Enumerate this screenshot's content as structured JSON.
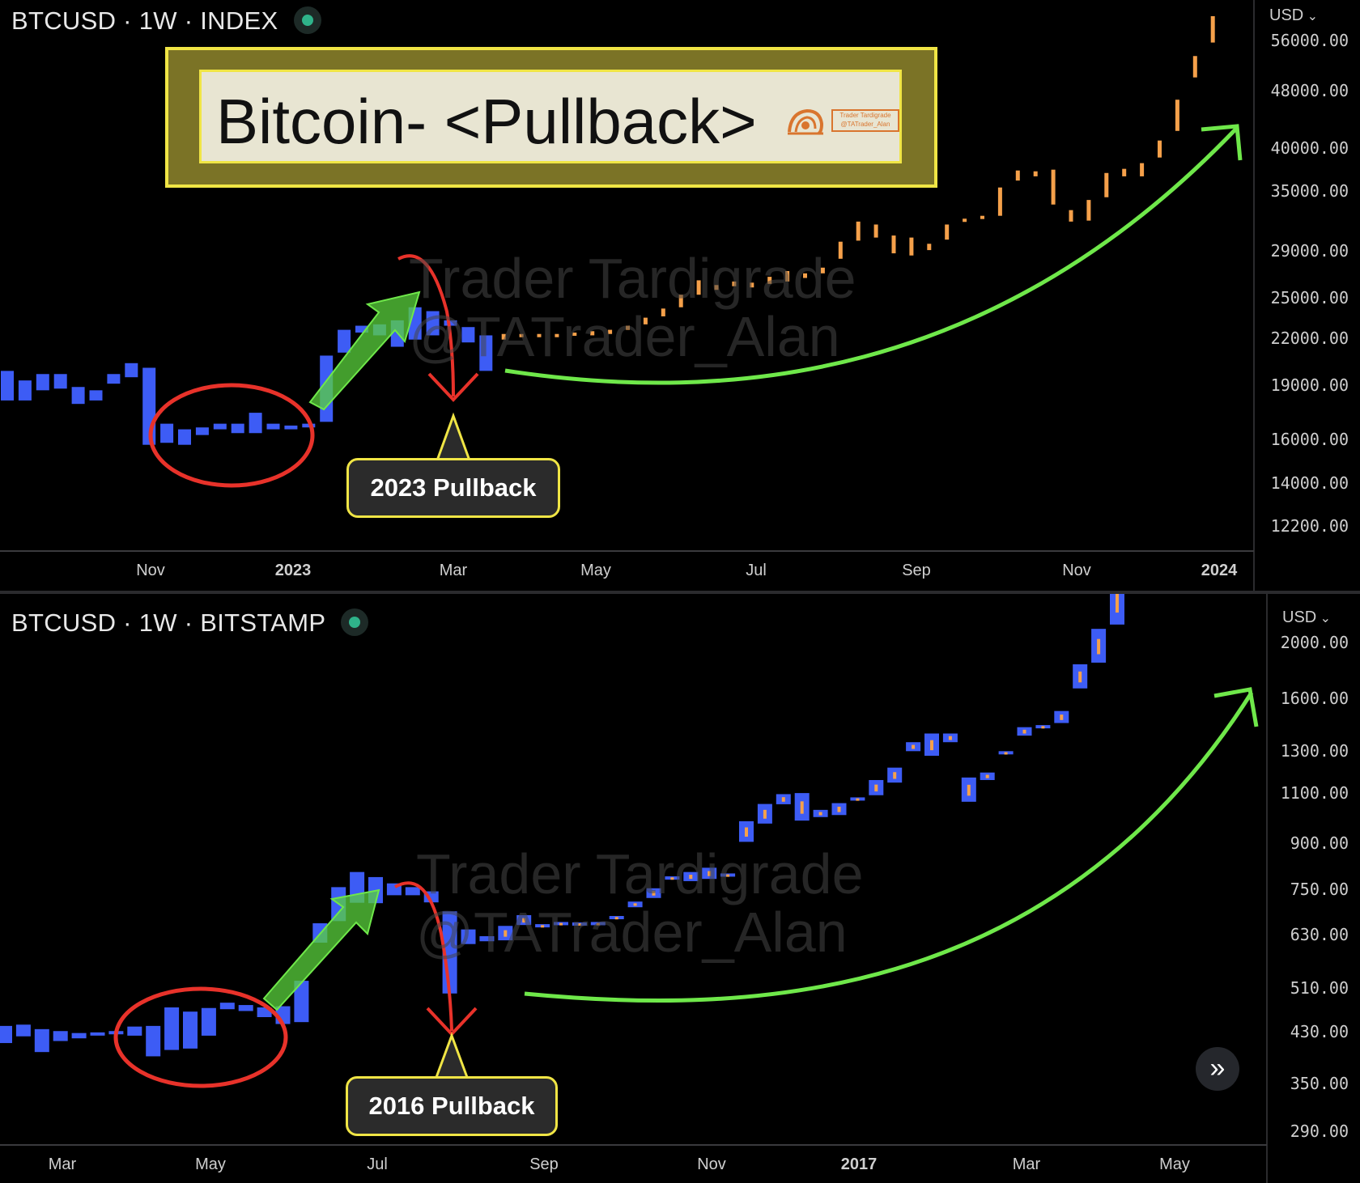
{
  "top_panel": {
    "symbol": "BTCUSD · 1W · INDEX",
    "currency": "USD",
    "price_ticks": [
      "56000.00",
      "48000.00",
      "40000.00",
      "35000.00",
      "29000.00",
      "25000.00",
      "22000.00",
      "19000.00",
      "16000.00",
      "14000.00",
      "12200.00"
    ],
    "time_ticks": [
      "Nov",
      "2023",
      "Mar",
      "May",
      "Jul",
      "Sep",
      "Nov",
      "2024"
    ],
    "banner_title": "Bitcoin- <Pullback>",
    "logo_line1": "Trader Tardigrade",
    "logo_line2": "@TATrader_Alan",
    "callout": "2023 Pullback",
    "watermark_line1": "Trader Tardigrade",
    "watermark_line2": "@TATrader_Alan"
  },
  "bottom_panel": {
    "symbol": "BTCUSD · 1W · BITSTAMP",
    "currency": "USD",
    "price_ticks": [
      "2000.00",
      "1600.00",
      "1300.00",
      "1100.00",
      "900.00",
      "750.00",
      "630.00",
      "510.00",
      "430.00",
      "350.00",
      "290.00"
    ],
    "time_ticks": [
      "Mar",
      "May",
      "Jul",
      "Sep",
      "Nov",
      "2017",
      "Mar",
      "May"
    ],
    "callout": "2016 Pullback",
    "watermark_line1": "Trader Tardigrade",
    "watermark_line2": "@TATrader_Alan"
  },
  "colors": {
    "bull": "#3d5cf5",
    "bear": "#3d5cf5",
    "projection": "#f5a04a",
    "arrow_green": "#6fe84a",
    "arrow_red": "#e8322a",
    "circle_red": "#e8322a",
    "callout_border": "#f0e545"
  },
  "chart_data": [
    {
      "type": "bar",
      "title": "BTCUSD · 1W · INDEX",
      "scale": "log",
      "ylim": [
        11000,
        62000
      ],
      "series": [
        {
          "values": [
            [
              20000,
              18200
            ],
            [
              19400,
              18200
            ],
            [
              18800,
              19800
            ],
            [
              18900,
              19800
            ],
            [
              19000,
              18000
            ],
            [
              18800,
              18200
            ],
            [
              19200,
              19800
            ],
            [
              19600,
              20500
            ],
            [
              20200,
              15800
            ],
            [
              16900,
              15900
            ],
            [
              16600,
              15800
            ],
            [
              16700,
              16300
            ],
            [
              16600,
              16900
            ],
            [
              16400,
              16900
            ],
            [
              17500,
              16400
            ],
            [
              16600,
              16900
            ],
            [
              16600,
              16800
            ],
            [
              16700,
              16900
            ],
            [
              17000,
              21000
            ],
            [
              21200,
              22800
            ],
            [
              22600,
              23100
            ],
            [
              22400,
              23200
            ],
            [
              23500,
              21600
            ],
            [
              24500,
              22100
            ],
            [
              24200,
              22400
            ],
            [
              23100,
              23500
            ],
            [
              21900,
              23000
            ],
            [
              20000,
              22400
            ]
          ]
        },
        {
          "values": [
            [
              22100,
              22500
            ],
            [
              22300,
              22500
            ],
            [
              22400,
              22500
            ],
            [
              22400,
              22500
            ],
            [
              22400,
              22600
            ],
            [
              22400,
              22700
            ],
            [
              22500,
              22800
            ],
            [
              22800,
              23100
            ],
            [
              23200,
              23700
            ],
            [
              23800,
              24400
            ],
            [
              24500,
              25500
            ],
            [
              25500,
              26700
            ],
            [
              25900,
              26300
            ],
            [
              26200,
              26600
            ],
            [
              26100,
              26500
            ],
            [
              26400,
              27000
            ],
            [
              26600,
              27500
            ],
            [
              26900,
              27300
            ],
            [
              27300,
              27800
            ],
            [
              28600,
              30200
            ],
            [
              30300,
              32200
            ],
            [
              30600,
              31900
            ],
            [
              29100,
              30800
            ],
            [
              28900,
              30600
            ],
            [
              29400,
              30000
            ],
            [
              30400,
              31900
            ],
            [
              32500,
              32300
            ],
            [
              32500,
              32800
            ],
            [
              32800,
              35900
            ],
            [
              36700,
              37900
            ],
            [
              37200,
              37800
            ],
            [
              34000,
              38000
            ],
            [
              32200,
              33400
            ],
            [
              32300,
              34500
            ],
            [
              34800,
              37600
            ],
            [
              37200,
              38100
            ],
            [
              37200,
              38800
            ],
            [
              39500,
              41700
            ],
            [
              43000,
              47500
            ],
            [
              51000,
              54600
            ],
            [
              57000,
              62000
            ]
          ]
        }
      ]
    },
    {
      "type": "bar",
      "title": "BTCUSD · 1W · BITSTAMP",
      "scale": "log",
      "ylim": [
        275,
        2200
      ],
      "series": [
        {
          "values": [
            [
              418,
              392
            ],
            [
              402,
              420
            ],
            [
              413,
              379
            ],
            [
              395,
              410
            ],
            [
              407,
              399
            ],
            [
              406,
              408
            ],
            [
              408,
              410
            ],
            [
              403,
              417
            ],
            [
              418,
              373
            ],
            [
              382,
              448
            ],
            [
              441,
              384
            ],
            [
              447,
              403
            ],
            [
              456,
              445
            ],
            [
              452,
              442
            ],
            [
              448,
              432
            ],
            [
              450,
              421
            ],
            [
              424,
              495
            ],
            [
              571,
              614
            ],
            [
              703,
              619
            ],
            [
              744,
              663
            ],
            [
              662,
              730
            ],
            [
              682,
              713
            ],
            [
              703,
              682
            ],
            [
              692,
              664
            ],
            [
              642,
              472
            ],
            [
              600,
              568
            ],
            [
              585,
              574
            ],
            [
              608,
              576
            ],
            [
              633,
              610
            ],
            [
              612,
              610
            ],
            [
              617,
              611
            ],
            [
              616,
              613
            ],
            [
              615,
              617
            ],
            [
              624,
              631
            ],
            [
              652,
              666
            ],
            [
              700,
              675
            ],
            [
              732,
              723
            ],
            [
              719,
              744
            ],
            [
              725,
              756
            ],
            [
              734,
              740
            ],
            [
              833,
              900
            ],
            [
              960,
              892
            ],
            [
              996,
              959
            ],
            [
              1000,
              902
            ],
            [
              914,
              939
            ],
            [
              921,
              963
            ],
            [
              984,
              980
            ],
            [
              992,
              1050
            ],
            [
              1100,
              1040
            ],
            [
              1170,
              1210
            ],
            [
              1150,
              1250
            ],
            [
              1250,
              1210
            ],
            [
              968,
              1060
            ],
            [
              1050,
              1080
            ],
            [
              1170,
              1160
            ],
            [
              1240,
              1280
            ],
            [
              1290,
              1290
            ],
            [
              1300,
              1360
            ],
            [
              1480,
              1620
            ],
            [
              1630,
              1850
            ],
            [
              1880,
              2250
            ],
            [
              2390,
              2200
            ]
          ]
        }
      ]
    }
  ]
}
